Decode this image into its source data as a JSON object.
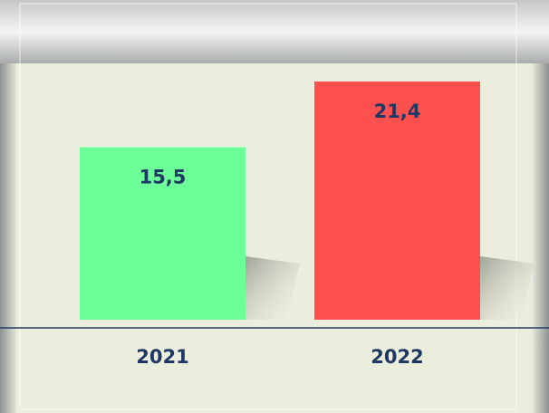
{
  "chart_data": {
    "type": "bar",
    "categories": [
      "2021",
      "2022"
    ],
    "values": [
      15.5,
      21.4
    ],
    "value_labels": [
      "15,5",
      "21,4"
    ],
    "colors": [
      "#6dff97",
      "#ff5050"
    ]
  }
}
